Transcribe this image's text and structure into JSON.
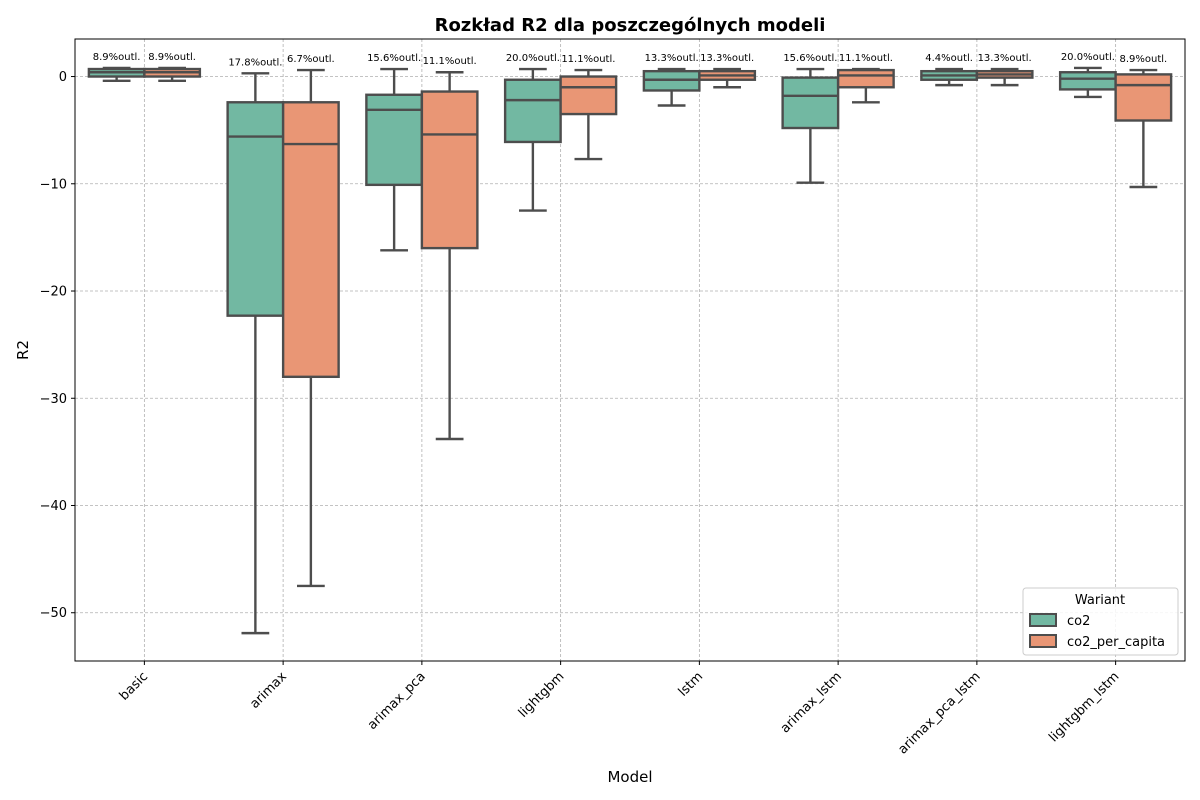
{
  "chart_data": {
    "type": "box",
    "title": "Rozkład R2 dla poszczególnych modeli",
    "xlabel": "Model",
    "ylabel": "R2",
    "ylim": [
      -54.5,
      3.5
    ],
    "yticks": [
      0,
      -10,
      -20,
      -30,
      -40,
      -50
    ],
    "ytick_labels": [
      "0",
      "−10",
      "−20",
      "−30",
      "−40",
      "−50"
    ],
    "grid": true,
    "categories": [
      "basic",
      "arimax",
      "arimax_pca",
      "lightgbm",
      "lstm",
      "arimax_lstm",
      "arimax_pca_lstm",
      "lightgbm_lstm"
    ],
    "legend": {
      "title": "Wariant",
      "placement": "lower-right"
    },
    "series": [
      {
        "name": "co2",
        "color": "#72b8a2",
        "boxes": [
          {
            "whislo": -0.4,
            "q1": 0.0,
            "med": 0.4,
            "q3": 0.7,
            "whishi": 0.8,
            "outlier_label": "8.9%outl."
          },
          {
            "whislo": -51.9,
            "q1": -22.3,
            "med": -5.6,
            "q3": -2.4,
            "whishi": 0.3,
            "outlier_label": "17.8%outl."
          },
          {
            "whislo": -16.2,
            "q1": -10.1,
            "med": -3.1,
            "q3": -1.7,
            "whishi": 0.7,
            "outlier_label": "15.6%outl."
          },
          {
            "whislo": -12.5,
            "q1": -6.1,
            "med": -2.2,
            "q3": -0.3,
            "whishi": 0.7,
            "outlier_label": "20.0%outl."
          },
          {
            "whislo": -2.7,
            "q1": -1.3,
            "med": -0.3,
            "q3": 0.5,
            "whishi": 0.7,
            "outlier_label": "13.3%outl."
          },
          {
            "whislo": -9.9,
            "q1": -4.8,
            "med": -1.8,
            "q3": -0.1,
            "whishi": 0.7,
            "outlier_label": "15.6%outl."
          },
          {
            "whislo": -0.8,
            "q1": -0.3,
            "med": 0.1,
            "q3": 0.5,
            "whishi": 0.7,
            "outlier_label": "4.4%outl."
          },
          {
            "whislo": -1.9,
            "q1": -1.2,
            "med": -0.2,
            "q3": 0.4,
            "whishi": 0.8,
            "outlier_label": "20.0%outl."
          }
        ]
      },
      {
        "name": "co2_per_capita",
        "color": "#e99675",
        "boxes": [
          {
            "whislo": -0.4,
            "q1": 0.0,
            "med": 0.4,
            "q3": 0.7,
            "whishi": 0.8,
            "outlier_label": "8.9%outl."
          },
          {
            "whislo": -47.5,
            "q1": -28.0,
            "med": -6.3,
            "q3": -2.4,
            "whishi": 0.6,
            "outlier_label": "6.7%outl."
          },
          {
            "whislo": -33.8,
            "q1": -16.0,
            "med": -5.4,
            "q3": -1.4,
            "whishi": 0.4,
            "outlier_label": "11.1%outl."
          },
          {
            "whislo": -7.7,
            "q1": -3.5,
            "med": -1.0,
            "q3": 0.0,
            "whishi": 0.6,
            "outlier_label": "11.1%outl."
          },
          {
            "whislo": -1.0,
            "q1": -0.3,
            "med": 0.1,
            "q3": 0.5,
            "whishi": 0.7,
            "outlier_label": "13.3%outl."
          },
          {
            "whislo": -2.4,
            "q1": -1.0,
            "med": 0.1,
            "q3": 0.6,
            "whishi": 0.7,
            "outlier_label": "11.1%outl."
          },
          {
            "whislo": -0.8,
            "q1": -0.1,
            "med": 0.2,
            "q3": 0.5,
            "whishi": 0.7,
            "outlier_label": "13.3%outl."
          },
          {
            "whislo": -10.3,
            "q1": -4.1,
            "med": -0.8,
            "q3": 0.2,
            "whishi": 0.6,
            "outlier_label": "8.9%outl."
          }
        ]
      }
    ]
  }
}
